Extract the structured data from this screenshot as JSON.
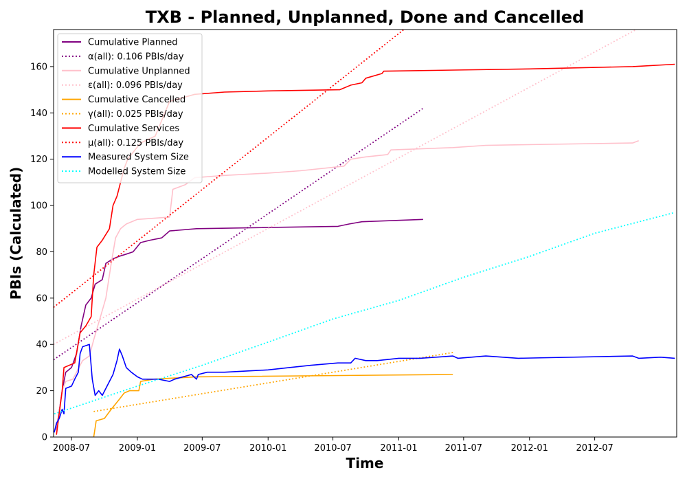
{
  "chart_data": {
    "type": "line",
    "title": "TXB - Planned, Unplanned, Done  and Cancelled",
    "xlabel": "Time",
    "ylabel": "PBIs (Calculated)",
    "xlim": [
      "2008-05-12",
      "2013-02-15"
    ],
    "ylim": [
      0,
      176
    ],
    "x_ticks": [
      "2008-07",
      "2009-01",
      "2009-07",
      "2010-01",
      "2010-07",
      "2011-01",
      "2011-07",
      "2012-01",
      "2012-07"
    ],
    "y_ticks": [
      0,
      20,
      40,
      60,
      80,
      100,
      120,
      140,
      160
    ],
    "grid": false,
    "legend_position": "top-left",
    "series": [
      {
        "name": "Cumulative Planned",
        "color": "#800080",
        "style": "solid",
        "points": [
          [
            "2008-05-20",
            3
          ],
          [
            "2008-06-05",
            20
          ],
          [
            "2008-06-15",
            28
          ],
          [
            "2008-07-01",
            30
          ],
          [
            "2008-07-15",
            36
          ],
          [
            "2008-07-28",
            48
          ],
          [
            "2008-08-10",
            57
          ],
          [
            "2008-08-25",
            60
          ],
          [
            "2008-09-05",
            66
          ],
          [
            "2008-09-25",
            68
          ],
          [
            "2008-10-05",
            75
          ],
          [
            "2008-10-25",
            77
          ],
          [
            "2008-11-10",
            78
          ],
          [
            "2008-12-01",
            79
          ],
          [
            "2008-12-20",
            80
          ],
          [
            "2009-01-10",
            84
          ],
          [
            "2009-02-05",
            85
          ],
          [
            "2009-03-10",
            86
          ],
          [
            "2009-04-01",
            89
          ],
          [
            "2009-06-15",
            90
          ],
          [
            "2010-07-15",
            91
          ],
          [
            "2010-08-15",
            92
          ],
          [
            "2010-09-20",
            93
          ],
          [
            "2011-03-10",
            94
          ]
        ]
      },
      {
        "name": "α(all): 0.106 PBIs/day",
        "color": "#800080",
        "style": "dotted",
        "points": [
          [
            "2008-05-12",
            33.4
          ],
          [
            "2011-03-10",
            142
          ]
        ]
      },
      {
        "name": "Cumulative Unplanned",
        "color": "#ffc0cb",
        "style": "solid",
        "points": [
          [
            "2008-05-20",
            2
          ],
          [
            "2008-06-05",
            20
          ],
          [
            "2008-06-15",
            24
          ],
          [
            "2008-07-05",
            25
          ],
          [
            "2008-08-01",
            33
          ],
          [
            "2008-08-20",
            35
          ],
          [
            "2008-09-01",
            42
          ],
          [
            "2008-09-20",
            52
          ],
          [
            "2008-10-05",
            60
          ],
          [
            "2008-10-20",
            75
          ],
          [
            "2008-11-01",
            86
          ],
          [
            "2008-11-15",
            90
          ],
          [
            "2008-12-01",
            92
          ],
          [
            "2009-01-01",
            94
          ],
          [
            "2009-04-01",
            95
          ],
          [
            "2009-04-10",
            107
          ],
          [
            "2009-05-15",
            109
          ],
          [
            "2009-06-10",
            112
          ],
          [
            "2009-09-01",
            113
          ],
          [
            "2010-01-01",
            114
          ],
          [
            "2010-04-01",
            115
          ],
          [
            "2010-08-01",
            117
          ],
          [
            "2010-08-20",
            120
          ],
          [
            "2010-10-01",
            121
          ],
          [
            "2010-12-01",
            122
          ],
          [
            "2010-12-10",
            124
          ],
          [
            "2011-06-01",
            125
          ],
          [
            "2011-09-01",
            126
          ],
          [
            "2012-10-15",
            127
          ],
          [
            "2012-11-01",
            128
          ]
        ]
      },
      {
        "name": "ε(all): 0.096 PBIs/day",
        "color": "#ffc0cb",
        "style": "dotted",
        "points": [
          [
            "2008-05-12",
            40
          ],
          [
            "2012-10-25",
            176
          ]
        ]
      },
      {
        "name": "Cumulative Cancelled",
        "color": "#ffa500",
        "style": "solid",
        "points": [
          [
            "2008-09-01",
            0
          ],
          [
            "2008-09-05",
            4
          ],
          [
            "2008-09-08",
            7
          ],
          [
            "2008-10-01",
            8
          ],
          [
            "2008-10-20",
            12
          ],
          [
            "2008-11-10",
            16
          ],
          [
            "2008-11-25",
            19
          ],
          [
            "2008-12-10",
            20
          ],
          [
            "2009-01-05",
            20
          ],
          [
            "2009-01-10",
            24
          ],
          [
            "2009-02-15",
            25
          ],
          [
            "2009-06-15",
            26
          ],
          [
            "2011-06-01",
            27
          ]
        ]
      },
      {
        "name": "γ(all): 0.025 PBIs/day",
        "color": "#ffa500",
        "style": "dotted",
        "points": [
          [
            "2008-09-01",
            11
          ],
          [
            "2011-06-01",
            36.5
          ]
        ]
      },
      {
        "name": "Cumulative Services",
        "color": "#ff0000",
        "style": "solid",
        "points": [
          [
            "2008-05-20",
            1
          ],
          [
            "2008-06-05",
            20
          ],
          [
            "2008-06-10",
            30
          ],
          [
            "2008-07-10",
            32
          ],
          [
            "2008-07-25",
            45
          ],
          [
            "2008-08-10",
            48
          ],
          [
            "2008-08-25",
            52
          ],
          [
            "2008-09-01",
            70
          ],
          [
            "2008-09-10",
            82
          ],
          [
            "2008-09-25",
            85
          ],
          [
            "2008-10-15",
            90
          ],
          [
            "2008-10-25",
            100
          ],
          [
            "2008-11-05",
            104
          ],
          [
            "2008-11-15",
            110
          ],
          [
            "2008-11-25",
            116
          ],
          [
            "2008-12-05",
            120
          ],
          [
            "2008-12-20",
            123
          ],
          [
            "2009-01-10",
            127
          ],
          [
            "2009-02-20",
            130
          ],
          [
            "2009-04-01",
            145
          ],
          [
            "2009-06-10",
            148
          ],
          [
            "2009-09-01",
            149
          ],
          [
            "2010-01-01",
            149.5
          ],
          [
            "2010-07-20",
            150
          ],
          [
            "2010-08-20",
            152
          ],
          [
            "2010-09-20",
            153
          ],
          [
            "2010-10-01",
            155
          ],
          [
            "2010-11-15",
            157
          ],
          [
            "2010-11-20",
            158
          ],
          [
            "2011-06-01",
            158.5
          ],
          [
            "2012-01-01",
            159
          ],
          [
            "2012-10-15",
            160
          ],
          [
            "2013-02-10",
            161
          ]
        ]
      },
      {
        "name": "μ(all): 0.125 PBIs/day",
        "color": "#ff0000",
        "style": "dotted",
        "points": [
          [
            "2008-05-12",
            56
          ],
          [
            "2011-01-15",
            176
          ]
        ]
      },
      {
        "name": "Measured System Size",
        "color": "#0000ff",
        "style": "solid",
        "points": [
          [
            "2008-05-14",
            2
          ],
          [
            "2008-05-20",
            6
          ],
          [
            "2008-05-28",
            8
          ],
          [
            "2008-06-05",
            12
          ],
          [
            "2008-06-10",
            10
          ],
          [
            "2008-06-15",
            21
          ],
          [
            "2008-07-01",
            22
          ],
          [
            "2008-07-10",
            25
          ],
          [
            "2008-07-20",
            28
          ],
          [
            "2008-07-25",
            36
          ],
          [
            "2008-08-01",
            39
          ],
          [
            "2008-08-20",
            40
          ],
          [
            "2008-08-28",
            25
          ],
          [
            "2008-09-05",
            18
          ],
          [
            "2008-09-15",
            20
          ],
          [
            "2008-09-25",
            18
          ],
          [
            "2008-10-05",
            21
          ],
          [
            "2008-10-15",
            24
          ],
          [
            "2008-10-25",
            27
          ],
          [
            "2008-11-05",
            33
          ],
          [
            "2008-11-12",
            38
          ],
          [
            "2008-11-20",
            35
          ],
          [
            "2008-12-01",
            30
          ],
          [
            "2008-12-15",
            28
          ],
          [
            "2009-01-01",
            26
          ],
          [
            "2009-01-15",
            25
          ],
          [
            "2009-03-01",
            25
          ],
          [
            "2009-04-01",
            24
          ],
          [
            "2009-04-15",
            25
          ],
          [
            "2009-06-01",
            27
          ],
          [
            "2009-06-15",
            25
          ],
          [
            "2009-06-20",
            27
          ],
          [
            "2009-07-15",
            28
          ],
          [
            "2009-09-01",
            28
          ],
          [
            "2010-01-01",
            29
          ],
          [
            "2010-03-01",
            30
          ],
          [
            "2010-05-01",
            31
          ],
          [
            "2010-07-15",
            32
          ],
          [
            "2010-08-20",
            32
          ],
          [
            "2010-09-01",
            34
          ],
          [
            "2010-10-01",
            33
          ],
          [
            "2010-11-01",
            33
          ],
          [
            "2011-01-01",
            34
          ],
          [
            "2011-03-01",
            34
          ],
          [
            "2011-06-01",
            35
          ],
          [
            "2011-06-15",
            34
          ],
          [
            "2011-09-01",
            35
          ],
          [
            "2011-12-01",
            34
          ],
          [
            "2012-10-15",
            35
          ],
          [
            "2012-11-01",
            34
          ],
          [
            "2013-01-01",
            34.5
          ],
          [
            "2013-02-10",
            34
          ]
        ]
      },
      {
        "name": "Modelled System Size",
        "color": "#00ffff",
        "style": "dotted",
        "points": [
          [
            "2008-05-14",
            10
          ],
          [
            "2009-01-01",
            22
          ],
          [
            "2009-07-01",
            31
          ],
          [
            "2010-01-01",
            41
          ],
          [
            "2010-07-01",
            51
          ],
          [
            "2011-01-01",
            59
          ],
          [
            "2011-07-01",
            69
          ],
          [
            "2012-01-01",
            78
          ],
          [
            "2012-07-01",
            88
          ],
          [
            "2013-02-10",
            97
          ]
        ]
      }
    ]
  }
}
